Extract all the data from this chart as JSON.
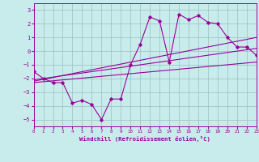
{
  "xlabel": "Windchill (Refroidissement éolien,°C)",
  "bg_color": "#c8ecec",
  "grid_color": "#9bbfbf",
  "line_color": "#990099",
  "xlim": [
    0,
    23
  ],
  "ylim": [
    -5.5,
    3.5
  ],
  "xticks": [
    0,
    1,
    2,
    3,
    4,
    5,
    6,
    7,
    8,
    9,
    10,
    11,
    12,
    13,
    14,
    15,
    16,
    17,
    18,
    19,
    20,
    21,
    22,
    23
  ],
  "yticks": [
    -5,
    -4,
    -3,
    -2,
    -1,
    0,
    1,
    2,
    3
  ],
  "main_x": [
    0,
    1,
    2,
    3,
    4,
    5,
    6,
    7,
    8,
    9,
    10,
    11,
    12,
    13,
    14,
    15,
    16,
    17,
    18,
    19,
    20,
    21,
    22,
    23
  ],
  "main_y": [
    -1.5,
    -2.0,
    -2.3,
    -2.3,
    -3.8,
    -3.6,
    -3.9,
    -5.0,
    -3.5,
    -3.5,
    -1.0,
    0.5,
    2.5,
    2.2,
    -0.8,
    2.7,
    2.3,
    2.6,
    2.1,
    2.0,
    1.0,
    0.3,
    0.3,
    -0.3
  ],
  "line1_x": [
    0,
    23
  ],
  "line1_y": [
    -2.2,
    1.0
  ],
  "line2_x": [
    0,
    23
  ],
  "line2_y": [
    -2.3,
    -0.8
  ],
  "line3_x": [
    0,
    23
  ],
  "line3_y": [
    -2.1,
    0.2
  ]
}
